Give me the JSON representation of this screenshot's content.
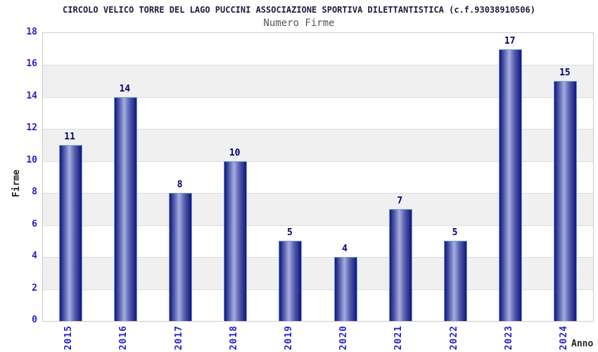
{
  "chart_data": {
    "type": "bar",
    "title": "CIRCOLO VELICO TORRE DEL LAGO PUCCINI ASSOCIAZIONE SPORTIVA DILETTANTISTICA (c.f.93038910506)",
    "subtitle": "Numero Firme",
    "xlabel": "Anno",
    "ylabel": "Firme",
    "categories": [
      "2015",
      "2016",
      "2017",
      "2018",
      "2019",
      "2020",
      "2021",
      "2022",
      "2023",
      "2024"
    ],
    "values": [
      11,
      14,
      8,
      10,
      5,
      4,
      7,
      5,
      17,
      15
    ],
    "ylim": [
      0,
      18
    ],
    "ytick_step": 2,
    "yticks": [
      0,
      2,
      4,
      6,
      8,
      10,
      12,
      14,
      16,
      18
    ],
    "grid": true,
    "legend_position": "none",
    "colors": {
      "title": "#1c1c3e",
      "subtitle": "#555555",
      "tick_label": "#2222cc",
      "value_label": "#00006e",
      "axis_title": "#222222",
      "bar_dark": "#14147a",
      "bar_mid": "#555fae",
      "bar_light": "#a6aede",
      "bar_border": "#64a2e6",
      "band_gray": "#f0f0f0",
      "band_white": "#ffffff",
      "plot_border": "#cccccc",
      "gridline": "#dcdcdc"
    }
  }
}
